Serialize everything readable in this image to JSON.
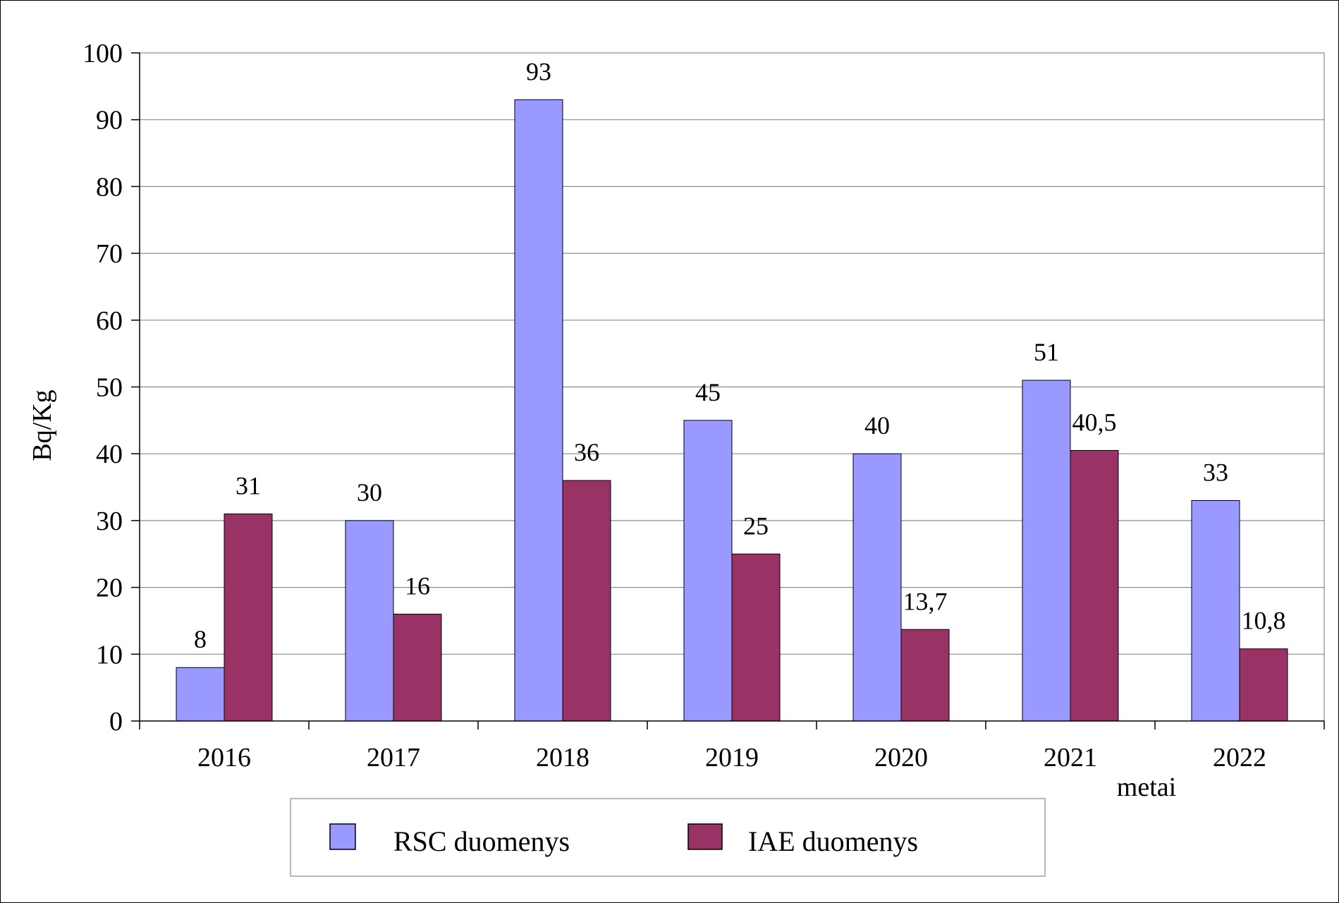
{
  "chart_data": {
    "type": "bar",
    "categories": [
      "2016",
      "2017",
      "2018",
      "2019",
      "2020",
      "2021",
      "2022"
    ],
    "series": [
      {
        "name": "RSC duomenys",
        "values": [
          8,
          30,
          93,
          45,
          40,
          51,
          33
        ],
        "labels": [
          "8",
          "30",
          "93",
          "45",
          "40",
          "51",
          "33"
        ],
        "color": "#9999ff"
      },
      {
        "name": "IAE duomenys",
        "values": [
          31,
          16,
          36,
          25,
          13.7,
          40.5,
          10.8
        ],
        "labels": [
          "31",
          "16",
          "36",
          "25",
          "13,7",
          "40,5",
          "10,8"
        ],
        "color": "#993366"
      }
    ],
    "ylabel": "Bq/Kg",
    "xlabel": "metai",
    "ylim": [
      0,
      100
    ],
    "yticks": [
      0,
      10,
      20,
      30,
      40,
      50,
      60,
      70,
      80,
      90,
      100
    ],
    "grid": true,
    "legend_position": "bottom"
  }
}
